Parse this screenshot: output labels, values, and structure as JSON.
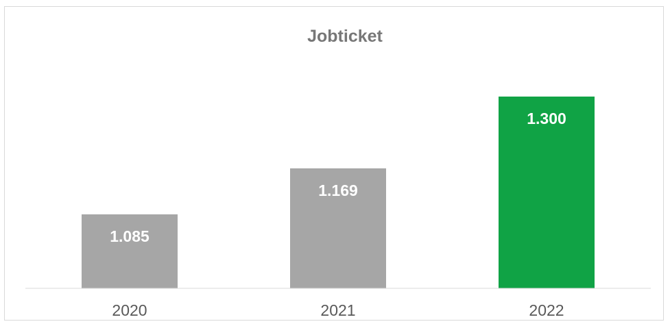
{
  "chart_data": {
    "type": "bar",
    "title": "Jobticket",
    "categories": [
      "2020",
      "2021",
      "2022"
    ],
    "values": [
      1085,
      1169,
      1300
    ],
    "data_labels": [
      "1.085",
      "1.169",
      "1.300"
    ],
    "xlabel": "",
    "ylabel": "",
    "ylim": [
      950,
      1320
    ],
    "grid": false,
    "legend": "none",
    "bar_colors": [
      "#a6a6a6",
      "#a6a6a6",
      "#10a345"
    ],
    "axis_color": "#d9d9d9"
  }
}
